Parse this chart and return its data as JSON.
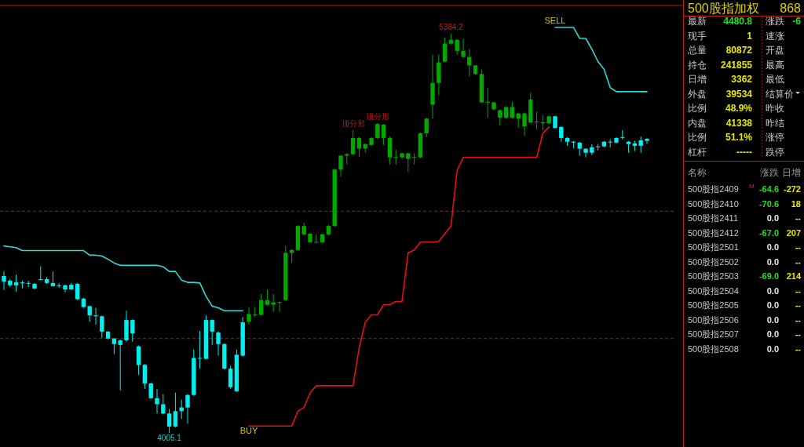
{
  "chart_data": [
    {
      "type": "candlestick",
      "tick_labels": false,
      "categories": [
        null,
        null,
        null,
        null,
        null,
        null,
        null,
        null,
        null,
        null,
        null,
        null,
        null,
        null,
        null,
        null,
        null,
        null,
        null,
        null,
        null,
        null,
        null,
        null,
        null,
        null,
        null,
        null,
        null,
        null,
        null,
        null,
        null,
        null,
        null,
        null,
        null,
        null,
        null,
        null,
        null,
        null,
        null,
        null,
        null,
        null,
        null,
        null,
        null,
        null,
        null,
        null,
        null,
        null,
        null,
        null,
        null,
        null,
        null,
        null,
        null,
        null,
        null,
        null,
        null,
        null,
        null,
        null,
        null,
        null,
        null,
        null,
        null,
        null,
        null,
        null,
        null,
        null,
        null,
        null,
        null,
        null,
        null,
        null,
        null,
        null,
        null,
        null,
        null,
        null,
        null,
        null,
        null,
        null,
        null,
        null,
        null,
        null,
        null,
        null,
        null,
        null,
        null,
        null,
        null,
        null
      ],
      "ohlc": [
        [
          4547,
          4563,
          4499,
          4528
        ],
        [
          4531,
          4536,
          4509,
          4515
        ],
        [
          4525,
          4552,
          4493,
          4515
        ],
        [
          4525,
          4531,
          4504,
          4524
        ],
        [
          4523,
          4531,
          4509,
          4522
        ],
        [
          4520,
          4523,
          4501,
          4504
        ],
        [
          4536,
          4581,
          4533,
          4535
        ],
        [
          4536,
          4544,
          4520,
          4523
        ],
        [
          4523,
          4563,
          4512,
          4512
        ],
        [
          4515,
          4523,
          4507,
          4514
        ],
        [
          4515,
          4517,
          4491,
          4501
        ],
        [
          4517,
          4523,
          4499,
          4501
        ],
        [
          4520,
          4523,
          4464,
          4467
        ],
        [
          4469,
          4472,
          4437,
          4440
        ],
        [
          4443,
          4445,
          4389,
          4411
        ],
        [
          4411,
          4437,
          4379,
          4410
        ],
        [
          4408,
          4411,
          4333,
          4355
        ],
        [
          4355,
          4357,
          4328,
          4331
        ],
        [
          4331,
          4333,
          4277,
          4312
        ],
        [
          4325,
          4328,
          4152,
          4309
        ],
        [
          4395,
          4427,
          4320,
          4325
        ],
        [
          4395,
          4397,
          4320,
          4349
        ],
        [
          4304,
          4307,
          4205,
          4240
        ],
        [
          4240,
          4243,
          4157,
          4176
        ],
        [
          4176,
          4179,
          4123,
          4125
        ],
        [
          4125,
          4157,
          4072,
          4104
        ],
        [
          4104,
          4139,
          4069,
          4072
        ],
        [
          4072,
          4088,
          4005.1,
          4027
        ],
        [
          4080,
          4144,
          4024,
          4027
        ],
        [
          4093,
          4120,
          4053,
          4080
        ],
        [
          4136,
          4139,
          4037,
          4093
        ],
        [
          4264,
          4293,
          4133,
          4136
        ],
        [
          4264,
          4357,
          4227,
          4263
        ],
        [
          4395,
          4411,
          4259,
          4261
        ],
        [
          4395,
          4397,
          4309,
          4355
        ],
        [
          4352,
          4355,
          4272,
          4312
        ],
        [
          4312,
          4315,
          4224,
          4227
        ],
        [
          4227,
          4237,
          4157,
          4163
        ],
        [
          4275,
          4293,
          4147,
          4149
        ],
        [
          4387,
          4405,
          4269,
          4272
        ],
        [
          4389,
          4440,
          4379,
          4416
        ],
        [
          4413,
          4440,
          4405,
          4414
        ],
        [
          4413,
          4485,
          4411,
          4464
        ],
        [
          4448,
          4501,
          4445,
          4464
        ],
        [
          4448,
          4485,
          4424,
          4456
        ],
        [
          4456,
          4459,
          4424,
          4457
        ],
        [
          4464,
          4651,
          4461,
          4627
        ],
        [
          4627,
          4640,
          4592,
          4637
        ],
        [
          4637,
          4723,
          4635,
          4720
        ],
        [
          4691,
          4731,
          4688,
          4720
        ],
        [
          4664,
          4696,
          4661,
          4693
        ],
        [
          4664,
          4691,
          4661,
          4665
        ],
        [
          4664,
          4693,
          4661,
          4691
        ],
        [
          4691,
          4723,
          4688,
          4720
        ],
        [
          4720,
          4917,
          4717,
          4915
        ],
        [
          4915,
          4965,
          4891,
          4963
        ],
        [
          4963,
          4971,
          4933,
          4968
        ],
        [
          4968,
          5051,
          4965,
          5024
        ],
        [
          4987,
          5027,
          4960,
          5024
        ],
        [
          4987,
          5005,
          4973,
          5003
        ],
        [
          5000,
          5027,
          4997,
          5024
        ],
        [
          5024,
          5075,
          5021,
          5072
        ],
        [
          5024,
          5072,
          5000,
          5070
        ],
        [
          4957,
          5029,
          4933,
          5024
        ],
        [
          4957,
          4984,
          4933,
          4958
        ],
        [
          4957,
          4973,
          4955,
          4971
        ],
        [
          4952,
          4973,
          4907,
          4971
        ],
        [
          4957,
          4971,
          4933,
          4958
        ],
        [
          4957,
          5043,
          4955,
          5040
        ],
        [
          5040,
          5093,
          5027,
          5091
        ],
        [
          5139,
          5312,
          5091,
          5214
        ],
        [
          5214,
          5312,
          5171,
          5285
        ],
        [
          5288,
          5371,
          5285,
          5350
        ],
        [
          5350,
          5384.2,
          5347,
          5363
        ],
        [
          5325,
          5366,
          5312,
          5363
        ],
        [
          5304,
          5368,
          5302,
          5325
        ],
        [
          5275,
          5331,
          5237,
          5304
        ],
        [
          5245,
          5277,
          5243,
          5275
        ],
        [
          5147,
          5261,
          5144,
          5245
        ],
        [
          5147,
          5198,
          5094,
          5149
        ],
        [
          5123,
          5149,
          5120,
          5147
        ],
        [
          5094,
          5123,
          5067,
          5120
        ],
        [
          5094,
          5133,
          5091,
          5131
        ],
        [
          5094,
          5149,
          5091,
          5131
        ],
        [
          5091,
          5112,
          5059,
          5109
        ],
        [
          5064,
          5112,
          5032,
          5109
        ],
        [
          5077,
          5181,
          5075,
          5157
        ],
        [
          5080,
          5115,
          5053,
          5081
        ],
        [
          5077,
          5104,
          5051,
          5078
        ],
        [
          5075,
          5101,
          5072,
          5099
        ],
        [
          5099,
          5101,
          5056,
          5059
        ],
        [
          5062,
          5064,
          5011,
          5024
        ],
        [
          5024,
          5027,
          4997,
          5011
        ],
        [
          5011,
          5014,
          4989,
          5008
        ],
        [
          5008,
          5011,
          4963,
          4987
        ],
        [
          4987,
          4989,
          4957,
          4973
        ],
        [
          4992,
          5003,
          4965,
          4973
        ],
        [
          4995,
          5003,
          4981,
          4994
        ],
        [
          5011,
          5014,
          4992,
          4995
        ],
        [
          5011,
          5019,
          4992,
          5010
        ],
        [
          5024,
          5027,
          5005,
          5008
        ],
        [
          5027,
          5051,
          5019,
          5026
        ],
        [
          5011,
          5014,
          4973,
          5003
        ],
        [
          5005,
          5014,
          4979,
          4997
        ],
        [
          5016,
          5029,
          4973,
          4997
        ],
        [
          5021,
          5024,
          5003,
          5014
        ]
      ],
      "colors": [
        "#00f0f0",
        "#00f0f0",
        "#00f0f0",
        "#00f0f0",
        "#00f0f0",
        "#00f0f0",
        "#00f0f0",
        "#00f0f0",
        "#00f0f0",
        "#00f0f0",
        "#00f0f0",
        "#00f0f0",
        "#00f0f0",
        "#00f0f0",
        "#00f0f0",
        "#00f0f0",
        "#00f0f0",
        "#00f0f0",
        "#00f0f0",
        "#00f0f0",
        "#00f0f0",
        "#00f0f0",
        "#00f0f0",
        "#00f0f0",
        "#00f0f0",
        "#00f0f0",
        "#00f0f0",
        "#00f0f0",
        "#00f0f0",
        "#00f0f0",
        "#00f0f0",
        "#00f0f0",
        "#00f0f0",
        "#00f0f0",
        "#00f0f0",
        "#00f0f0",
        "#00f0f0",
        "#00f0f0",
        "#00f0f0",
        "#00f0f0",
        "#00a800",
        "#00a800",
        "#00a800",
        "#00a800",
        "#00a800",
        "#00a800",
        "#00a800",
        "#00a800",
        "#00a800",
        "#00a800",
        "#00a800",
        "#00a800",
        "#00a800",
        "#00a800",
        "#00a800",
        "#00a800",
        "#00a800",
        "#00a800",
        "#00a800",
        "#00a800",
        "#00a800",
        "#00a800",
        "#00a800",
        "#00a800",
        "#00a800",
        "#00a800",
        "#00a800",
        "#00a800",
        "#00a800",
        "#00a800",
        "#00a800",
        "#00a800",
        "#00a800",
        "#00a800",
        "#00a800",
        "#00a800",
        "#00a800",
        "#00a800",
        "#00a800",
        "#00a800",
        "#00a800",
        "#00a800",
        "#00a800",
        "#00a800",
        "#00a800",
        "#00a800",
        "#00a800",
        "#00a800",
        "#00a800",
        "#00a800",
        "#00f0f0",
        "#00f0f0",
        "#00f0f0",
        "#00f0f0",
        "#00f0f0",
        "#00f0f0",
        "#00f0f0",
        "#00f0f0",
        "#00f0f0",
        "#00f0f0",
        "#00f0f0",
        "#00f0f0",
        "#00f0f0",
        "#00f0f0",
        "#00f0f0",
        "#00f0f0"
      ],
      "series": [
        {
          "type": "line",
          "color": "#30d8d8",
          "values": [
            4651,
            4648,
            4645,
            4635,
            4635,
            4635,
            4635,
            4635,
            4635,
            4635,
            4635,
            4635,
            4635,
            4635,
            4619,
            4619,
            4616,
            4605,
            4592,
            4584,
            4584,
            4584,
            4584,
            4584,
            4584,
            4584,
            4579,
            4563,
            4563,
            4533,
            4525,
            4525,
            4523,
            4477,
            4443,
            4437,
            4427,
            4427,
            4427,
            4427,
            null,
            null,
            null,
            null,
            null,
            null,
            null,
            null,
            null,
            null,
            null,
            null,
            null,
            null,
            null,
            null,
            null,
            null,
            null,
            null,
            null,
            null,
            null,
            null,
            null,
            null,
            null,
            null,
            null,
            null,
            null,
            null,
            null,
            null,
            null,
            null,
            null,
            null,
            null,
            null,
            null,
            null,
            null,
            null,
            null,
            null,
            null,
            null,
            null,
            null,
            5406,
            5406,
            5406,
            5406,
            5368,
            5368,
            5331,
            5288,
            5261,
            5198,
            5184,
            5184,
            5184,
            5184,
            5184,
            5184
          ]
        },
        {
          "type": "line",
          "color": "#e81010",
          "values": [
            null,
            null,
            null,
            null,
            null,
            null,
            null,
            null,
            null,
            null,
            null,
            null,
            null,
            null,
            null,
            null,
            null,
            null,
            null,
            null,
            null,
            null,
            null,
            null,
            null,
            null,
            null,
            null,
            null,
            null,
            null,
            null,
            null,
            null,
            null,
            null,
            null,
            null,
            null,
            null,
            4029,
            4029,
            4029,
            4029,
            4029,
            4029,
            4029,
            4029,
            4080,
            4093,
            4144,
            4168,
            4168,
            4168,
            4168,
            4168,
            4168,
            4168,
            4299,
            4387,
            4413,
            4413,
            4448,
            4448,
            4459,
            4459,
            4627,
            4637,
            4664,
            4664,
            4664,
            4667,
            4693,
            4720,
            4912,
            4957,
            4957,
            4957,
            4957,
            4957,
            4957,
            4957,
            4957,
            4957,
            4957,
            4957,
            4957,
            4957,
            5040,
            5062,
            null,
            null,
            null,
            null,
            null,
            null,
            null,
            null,
            null,
            null,
            null,
            null,
            null,
            null,
            null,
            null
          ]
        }
      ],
      "ref_lines": [
        {
          "axis": "y",
          "value": 4771,
          "color": "#a01818",
          "line_style": "dashed"
        },
        {
          "axis": "y",
          "value": 4331,
          "color": "#a01818",
          "line_style": "dashed"
        }
      ],
      "annotations": [
        {
          "text": "5384.2",
          "y": 5384.2
        },
        {
          "text": "顶分形",
          "y": 5051
        },
        {
          "text": "顶分形",
          "y": 5075
        },
        {
          "text": "4005.1",
          "y": 4005.1
        },
        {
          "text": "BUY",
          "y": 4029
        },
        {
          "text": "SELL",
          "y": 5406
        }
      ]
    },
    {
      "type": "other",
      "title": "500股指加权",
      "subtitle": "868",
      "annotations": [
        "最新",
        "4480.8",
        "涨跌",
        "-6",
        "现手",
        "1",
        "速涨",
        "总量",
        "80872",
        "开盘",
        "持仓",
        "241855",
        "最高",
        "日增",
        "3362",
        "最低",
        "外盘",
        "39534",
        "结算价",
        "比例",
        "48.9%",
        "昨收",
        "内盘",
        "41338",
        "昨结",
        "比例",
        "51.1%",
        "涨停",
        "杠杆",
        "-----",
        "跌停",
        "名称",
        "涨跌",
        "日增",
        "500股指2409",
        "-64.6",
        "-272",
        "500股指2410",
        "-70.6",
        "18",
        "500股指2411",
        "0.0",
        "--",
        "500股指2412",
        "-67.0",
        "207",
        "500股指2501",
        "0.0",
        "--",
        "500股指2502",
        "0.0",
        "--",
        "500股指2503",
        "-69.0",
        "214",
        "500股指2504",
        "0.0",
        "--",
        "500股指2505",
        "0.0",
        "--",
        "500股指2506",
        "0.0",
        "--",
        "500股指2507",
        "0.0",
        "--",
        "500股指2508",
        "0.0",
        "--",
        "M"
      ]
    }
  ]
}
